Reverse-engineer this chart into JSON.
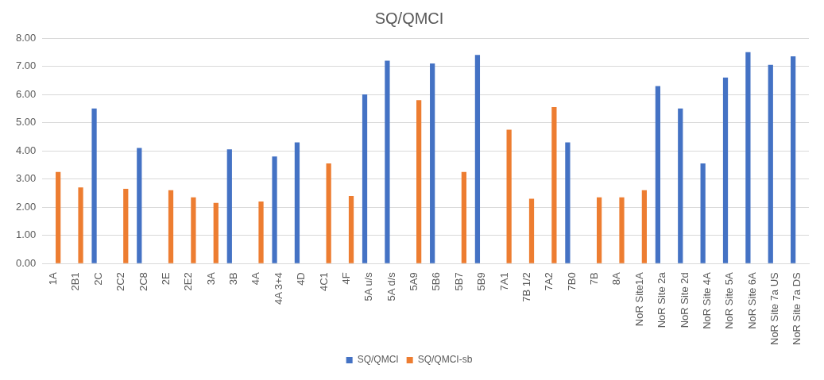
{
  "chart_data": {
    "type": "bar",
    "title": "SQ/QMCI",
    "categories": [
      "1A",
      "2B1",
      "2C",
      "2C2",
      "2C8",
      "2E",
      "2E2",
      "3A",
      "3B",
      "4A",
      "4A 3+4",
      "4D",
      "4C1",
      "4F",
      "5A u/s",
      "5A d/s",
      "5A9",
      "5B6",
      "5B7",
      "5B9",
      "7A1",
      "7B 1/2",
      "7A2",
      "7B0",
      "7B",
      "8A",
      "NoR Site1A",
      "NoR Site 2a",
      "NoR Site 2d",
      "NoR Site 4A",
      "NoR Site 5A",
      "NoR Site 6A",
      "NoR Site 7a US",
      "NoR Site 7a DS"
    ],
    "series": [
      {
        "name": "SQ/QMCI",
        "color": "#4472c4",
        "values": [
          null,
          null,
          5.5,
          null,
          4.1,
          null,
          null,
          null,
          4.05,
          null,
          3.8,
          4.3,
          null,
          null,
          6.0,
          7.2,
          null,
          7.1,
          null,
          7.4,
          null,
          null,
          null,
          4.3,
          null,
          null,
          null,
          6.3,
          5.5,
          3.55,
          6.6,
          7.5,
          7.05,
          7.35
        ]
      },
      {
        "name": "SQ/QMCI-sb",
        "color": "#ed7d31",
        "values": [
          3.25,
          2.7,
          null,
          2.65,
          null,
          2.6,
          2.35,
          2.15,
          null,
          2.2,
          null,
          null,
          3.55,
          2.4,
          null,
          null,
          5.8,
          null,
          3.25,
          null,
          4.75,
          2.3,
          5.55,
          null,
          2.35,
          2.35,
          2.6,
          null,
          null,
          null,
          null,
          null,
          null,
          null
        ]
      }
    ],
    "ylim": [
      0,
      8
    ],
    "yticks": [
      {
        "value": 0,
        "label": "0.00"
      },
      {
        "value": 1,
        "label": "1.00"
      },
      {
        "value": 2,
        "label": "2.00"
      },
      {
        "value": 3,
        "label": "3.00"
      },
      {
        "value": 4,
        "label": "4.00"
      },
      {
        "value": 5,
        "label": "5.00"
      },
      {
        "value": 6,
        "label": "6.00"
      },
      {
        "value": 7,
        "label": "7.00"
      },
      {
        "value": 8,
        "label": "8.00"
      }
    ],
    "grid": "y",
    "legend": "bottom"
  }
}
